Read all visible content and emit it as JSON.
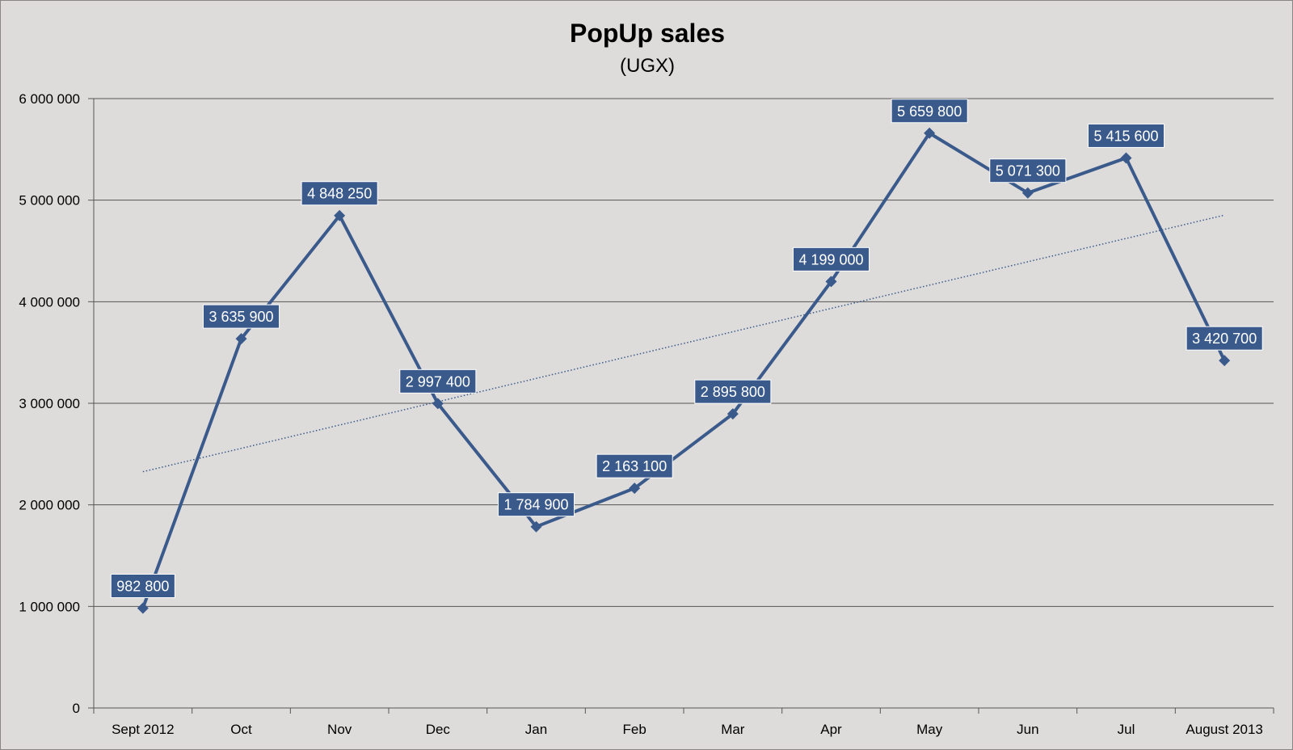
{
  "chart_data": {
    "type": "line",
    "title": "PopUp sales",
    "subtitle": "(UGX)",
    "xlabel": "",
    "ylabel": "",
    "categories": [
      "Sept 2012",
      "Oct",
      "Nov",
      "Dec",
      "Jan",
      "Feb",
      "Mar",
      "Apr",
      "May",
      "Jun",
      "Jul",
      "August 2013"
    ],
    "series": [
      {
        "values": [
          982800,
          3635900,
          4848250,
          2997400,
          1784900,
          2163100,
          2895800,
          4199000,
          5659800,
          5071300,
          5415600,
          3420700
        ],
        "data_labels": [
          "982 800",
          "3 635 900",
          "4 848 250",
          "2 997 400",
          "1 784 900",
          "2 163 100",
          "2 895 800",
          "4 199 000",
          "5 659 800",
          "5 071 300",
          "5 415 600",
          "3 420 700"
        ],
        "color": "#3b5a8c",
        "marker": "diamond"
      }
    ],
    "trendline": {
      "type": "linear",
      "style": "dotted",
      "color": "#3b5a8c"
    },
    "ylim": [
      0,
      6000000
    ],
    "yticks": [
      0,
      1000000,
      2000000,
      3000000,
      4000000,
      5000000,
      6000000
    ],
    "ytick_labels": [
      "0",
      "1 000 000",
      "2 000 000",
      "3 000 000",
      "4 000 000",
      "5 000 000",
      "6 000 000"
    ],
    "grid": true,
    "legend": "none",
    "colors": {
      "background": "#dedcda",
      "gridline": "#555555",
      "label_box": "#3b5a8c",
      "label_text": "#ffffff"
    }
  }
}
